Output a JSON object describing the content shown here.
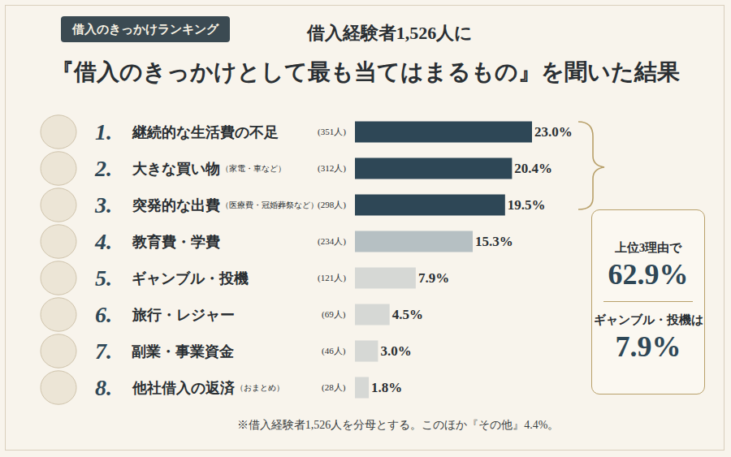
{
  "chart_data": {
    "type": "bar",
    "orientation": "horizontal",
    "badge": "借入のきっかけランキング",
    "title": "借入経験者1,526人に",
    "subtitle": "『借入のきっかけとして最も当てはまるもの』を聞いた結果",
    "ranks": [
      "1.",
      "2.",
      "3.",
      "4.",
      "5.",
      "6.",
      "7.",
      "8."
    ],
    "categories": [
      "継続的な生活費の不足",
      "大きな買い物",
      "突発的な出費",
      "教育費・学費",
      "ギャンブル・投機",
      "旅行・レジャー",
      "副業・事業資金",
      "他社借入の返済"
    ],
    "category_notes": [
      null,
      "（家電・車など）",
      "（医療費・冠婚葬祭など）",
      null,
      null,
      null,
      null,
      "（おまとめ）"
    ],
    "count_labels": [
      "(351人)",
      "(312人)",
      "(298人)",
      "(234人)",
      "(121人)",
      "(69人)",
      "(46人)",
      "(28人)"
    ],
    "values": [
      23.0,
      20.4,
      19.5,
      15.3,
      7.9,
      4.5,
      3.0,
      1.8
    ],
    "value_labels": [
      "23.0%",
      "20.4%",
      "19.5%",
      "15.3%",
      "7.9%",
      "4.5%",
      "3.0%",
      "1.8%"
    ],
    "data_labels": true,
    "colors": [
      "#2e4756",
      "#2e4756",
      "#2e4756",
      "#b6c0c3",
      "#d6d8d5",
      "#d6d8d5",
      "#d6d8d5",
      "#d6d8d5"
    ],
    "xlim": [
      0,
      23.0
    ],
    "tick_labels": false,
    "grid": false,
    "callouts": [
      {
        "label": "上位3理由で",
        "value_label": "62.9%"
      },
      {
        "label": "ギャンブル・投機は",
        "value_label": "7.9%"
      }
    ],
    "note": "※借入経験者1,526人を分母とする。このほか『その他』4.4%。"
  }
}
